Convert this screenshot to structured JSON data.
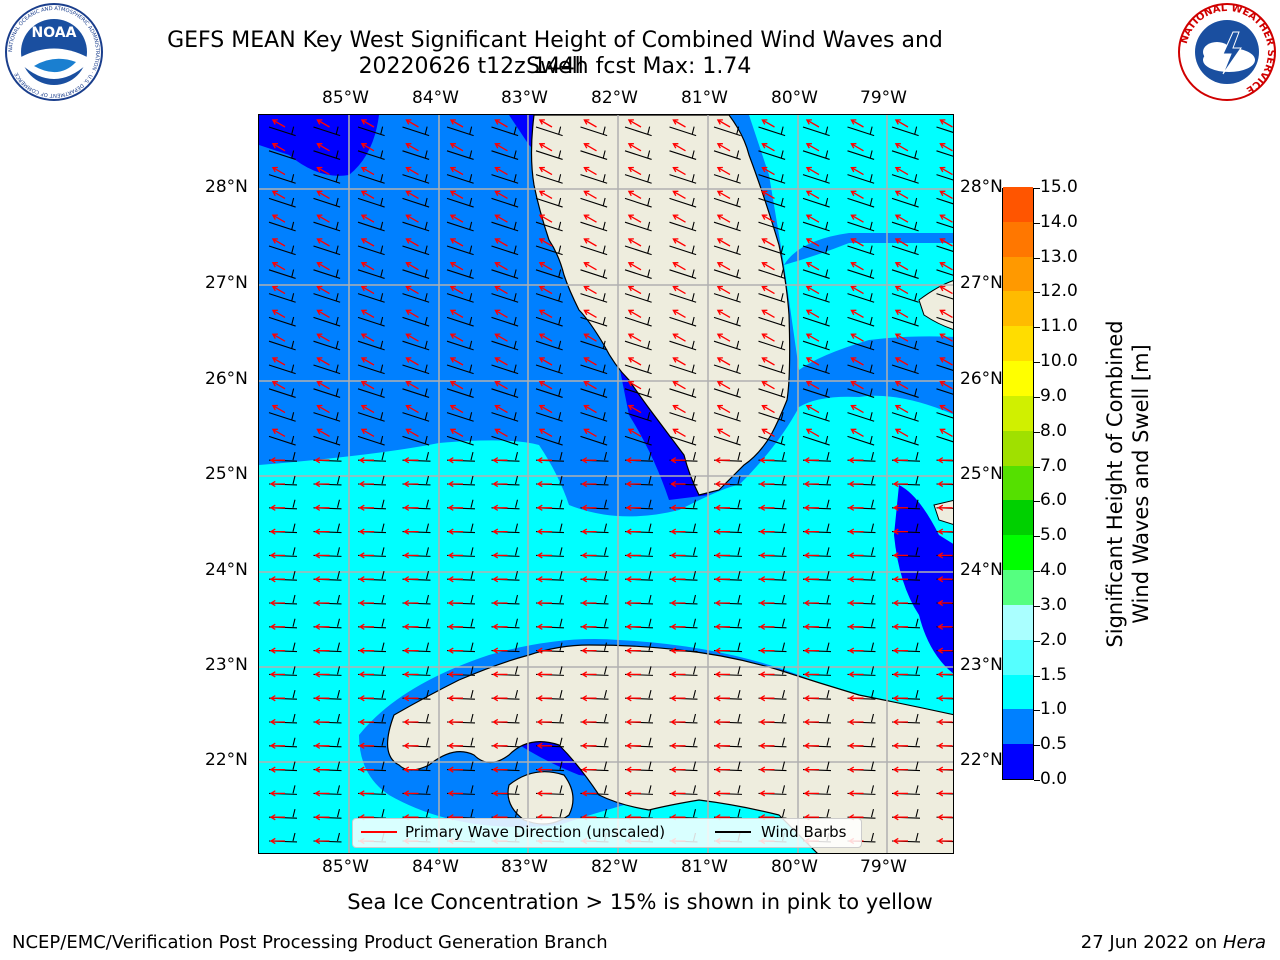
{
  "header": {
    "title_line1": "GEFS MEAN Key West Significant Height of Combined Wind Waves and Swell",
    "title_line2": "20220626 t12z 144h fcst   Max: 1.74"
  },
  "logos": {
    "left": "NOAA",
    "left_ring": "NATIONAL OCEANIC AND ATMOSPHERIC ADMINISTRATION · U.S. DEPARTMENT OF COMMERCE",
    "right_ring": "NATIONAL WEATHER SERVICE"
  },
  "map": {
    "lon_labels": [
      "85°W",
      "84°W",
      "83°W",
      "82°W",
      "81°W",
      "80°W",
      "79°W"
    ],
    "lat_labels": [
      "28°N",
      "27°N",
      "26°N",
      "25°N",
      "24°N",
      "23°N",
      "22°N"
    ],
    "colors": {
      "band_0_05": "#0000ff",
      "band_05_1": "#0080ff",
      "band_1_15": "#00ffff",
      "land": "#eeedde",
      "gridline": "#b0b0b0",
      "wave_arrow": "#ff0000",
      "wind_barb": "#000000"
    }
  },
  "legend": {
    "primary_wave_label": "Primary Wave Direction (unscaled)",
    "wind_barbs_label": "Wind Barbs"
  },
  "colorbar": {
    "ticks": [
      "15.0",
      "14.0",
      "13.0",
      "12.0",
      "11.0",
      "10.0",
      "9.0",
      "8.0",
      "7.0",
      "6.0",
      "5.0",
      "4.0",
      "3.0",
      "2.0",
      "1.5",
      "1.0",
      "0.5",
      "0.0"
    ],
    "label_line1": "Significant Height of Combined",
    "label_line2": "Wind Waves and Swell [m]",
    "colors": [
      "#0000ff",
      "#0080ff",
      "#00ffff",
      "#55ffff",
      "#aaffff",
      "#55ff80",
      "#00ff00",
      "#00d000",
      "#55e000",
      "#a0e000",
      "#d0f000",
      "#ffff00",
      "#ffdd00",
      "#ffbb00",
      "#ff9900",
      "#ff7700",
      "#ff5500",
      "#ff3300",
      "#ff0000"
    ]
  },
  "note": "Sea Ice Concentration > 15% is shown in pink to yellow",
  "footer": {
    "left": "NCEP/EMC/Verification Post Processing Product Generation Branch",
    "right_prefix": "27 Jun 2022 on ",
    "right_host": "Hera"
  }
}
